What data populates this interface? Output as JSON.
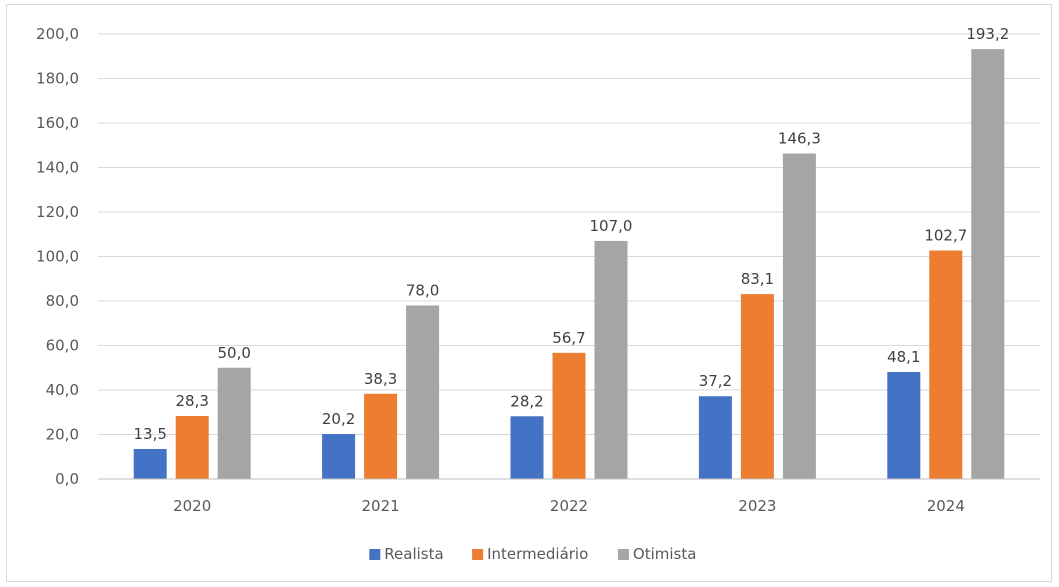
{
  "chart_data": {
    "type": "bar",
    "categories": [
      "2020",
      "2021",
      "2022",
      "2023",
      "2024"
    ],
    "series": [
      {
        "name": "Realista",
        "values": [
          13.5,
          20.2,
          28.2,
          37.2,
          48.1
        ],
        "labels": [
          "13,5",
          "20,2",
          "28,2",
          "37,2",
          "48,1"
        ],
        "color": "#4472c4"
      },
      {
        "name": "Intermediário",
        "values": [
          28.3,
          38.3,
          56.7,
          83.1,
          102.7
        ],
        "labels": [
          "28,3",
          "38,3",
          "56,7",
          "83,1",
          "102,7"
        ],
        "color": "#ed7d31"
      },
      {
        "name": "Otimista",
        "values": [
          50.0,
          78.0,
          107.0,
          146.3,
          193.2
        ],
        "labels": [
          "50,0",
          "78,0",
          "107,0",
          "146,3",
          "193,2"
        ],
        "color": "#a5a5a5"
      }
    ],
    "yticks": [
      "0,0",
      "20,0",
      "40,0",
      "60,0",
      "80,0",
      "100,0",
      "120,0",
      "140,0",
      "160,0",
      "180,0",
      "200,0"
    ],
    "ylim": [
      0,
      200
    ],
    "grid": true,
    "legend_position": "bottom",
    "title": "",
    "xlabel": "",
    "ylabel": ""
  }
}
